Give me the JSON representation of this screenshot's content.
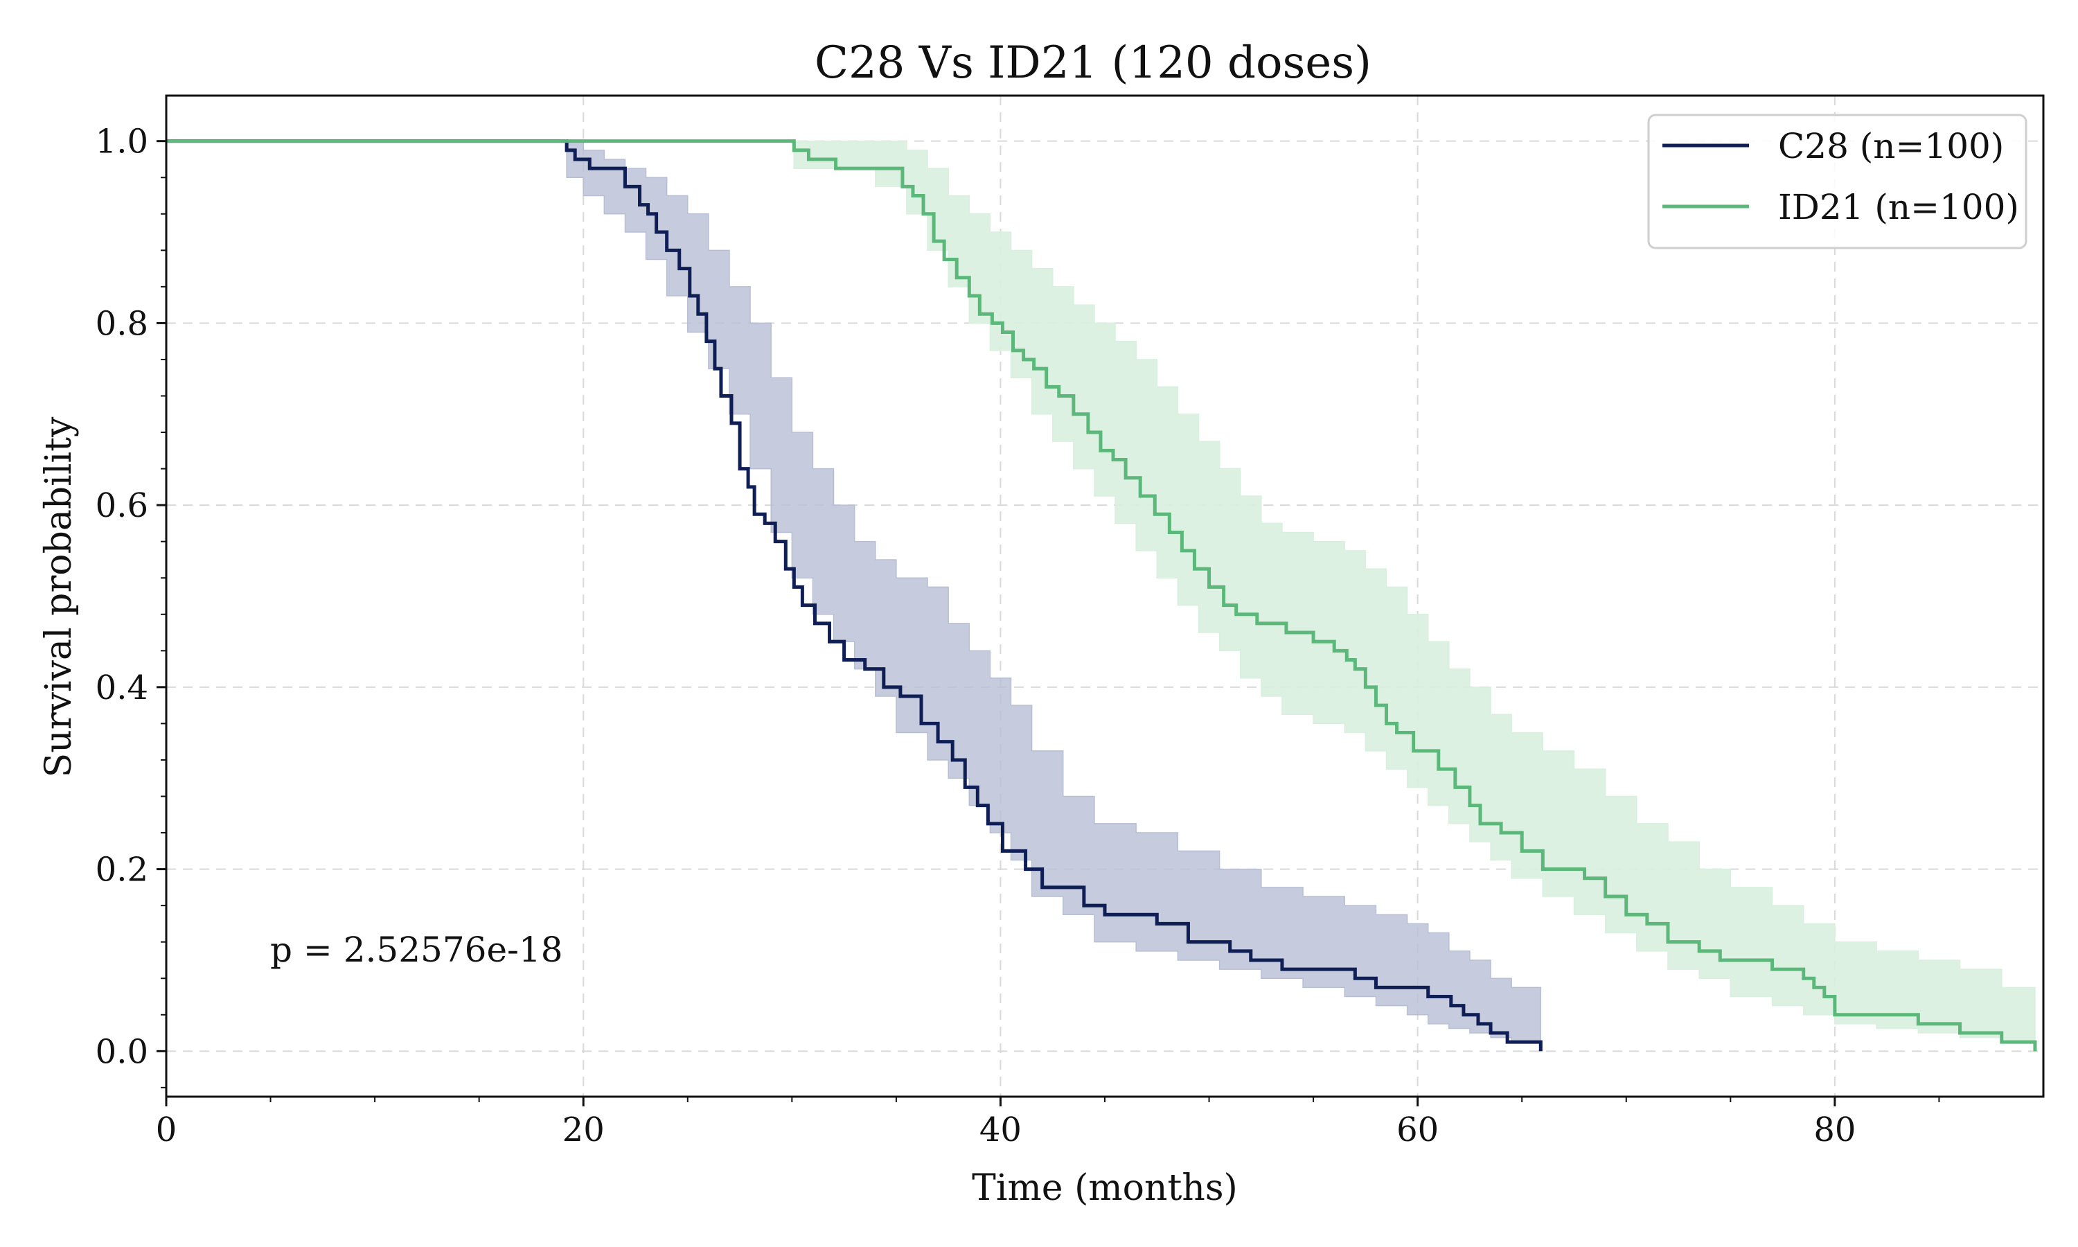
{
  "chart_data": {
    "type": "line",
    "title": "C28 Vs ID21 (120 doses)",
    "xlabel": "Time (months)",
    "ylabel": "Survival probability",
    "xlim": [
      0,
      90
    ],
    "ylim": [
      -0.05,
      1.05
    ],
    "xticks": [
      0,
      20,
      40,
      60,
      80
    ],
    "yticks": [
      0.0,
      0.2,
      0.4,
      0.6,
      0.8,
      1.0
    ],
    "ytick_labels": [
      "0.0",
      "0.2",
      "0.4",
      "0.6",
      "0.8",
      "1.0"
    ],
    "grid": true,
    "legend_position": "top-right",
    "annotation": "p = 2.52576e-18",
    "series": [
      {
        "name": "C28 (n=100)",
        "color": "#0f1f55",
        "band_color": "#b8bfd4",
        "points": [
          [
            0,
            1.0
          ],
          [
            19,
            1.0
          ],
          [
            19.2,
            0.99
          ],
          [
            19.6,
            0.98
          ],
          [
            20.3,
            0.97
          ],
          [
            22,
            0.95
          ],
          [
            22.7,
            0.93
          ],
          [
            23.1,
            0.92
          ],
          [
            23.5,
            0.9
          ],
          [
            24,
            0.88
          ],
          [
            24.6,
            0.86
          ],
          [
            25.1,
            0.83
          ],
          [
            25.5,
            0.81
          ],
          [
            25.9,
            0.78
          ],
          [
            26.3,
            0.75
          ],
          [
            26.6,
            0.72
          ],
          [
            27.1,
            0.69
          ],
          [
            27.5,
            0.64
          ],
          [
            27.9,
            0.62
          ],
          [
            28.2,
            0.59
          ],
          [
            28.7,
            0.58
          ],
          [
            29.2,
            0.56
          ],
          [
            29.7,
            0.53
          ],
          [
            30.1,
            0.51
          ],
          [
            30.5,
            0.49
          ],
          [
            31.1,
            0.47
          ],
          [
            31.8,
            0.45
          ],
          [
            32.5,
            0.43
          ],
          [
            33.5,
            0.42
          ],
          [
            34.4,
            0.4
          ],
          [
            35.2,
            0.39
          ],
          [
            36.2,
            0.36
          ],
          [
            37,
            0.34
          ],
          [
            37.7,
            0.32
          ],
          [
            38.3,
            0.29
          ],
          [
            38.9,
            0.27
          ],
          [
            39.4,
            0.25
          ],
          [
            40.1,
            0.22
          ],
          [
            41.2,
            0.2
          ],
          [
            42,
            0.18
          ],
          [
            44,
            0.16
          ],
          [
            45,
            0.15
          ],
          [
            47.5,
            0.14
          ],
          [
            49,
            0.12
          ],
          [
            51,
            0.11
          ],
          [
            52,
            0.1
          ],
          [
            53.5,
            0.09
          ],
          [
            57,
            0.08
          ],
          [
            58,
            0.07
          ],
          [
            60.5,
            0.06
          ],
          [
            61.6,
            0.05
          ],
          [
            62.2,
            0.04
          ],
          [
            62.9,
            0.03
          ],
          [
            63.5,
            0.02
          ],
          [
            64.3,
            0.01
          ],
          [
            65.8,
            0.01
          ],
          [
            65.9,
            0.0
          ]
        ],
        "upper": [
          [
            0,
            1.0
          ],
          [
            19,
            1.0
          ],
          [
            19.2,
            1.0
          ],
          [
            20,
            0.99
          ],
          [
            21,
            0.98
          ],
          [
            22,
            0.97
          ],
          [
            23,
            0.96
          ],
          [
            24,
            0.94
          ],
          [
            25,
            0.92
          ],
          [
            26,
            0.88
          ],
          [
            27,
            0.84
          ],
          [
            28,
            0.8
          ],
          [
            29,
            0.74
          ],
          [
            30,
            0.68
          ],
          [
            31,
            0.64
          ],
          [
            32,
            0.6
          ],
          [
            33,
            0.56
          ],
          [
            34,
            0.54
          ],
          [
            35,
            0.52
          ],
          [
            36.5,
            0.51
          ],
          [
            37.5,
            0.47
          ],
          [
            38.5,
            0.44
          ],
          [
            39.5,
            0.41
          ],
          [
            40.5,
            0.38
          ],
          [
            41.5,
            0.33
          ],
          [
            43,
            0.28
          ],
          [
            44.5,
            0.25
          ],
          [
            46.5,
            0.24
          ],
          [
            48.5,
            0.22
          ],
          [
            50.5,
            0.2
          ],
          [
            52.5,
            0.18
          ],
          [
            54.5,
            0.17
          ],
          [
            56.5,
            0.16
          ],
          [
            58,
            0.15
          ],
          [
            59.5,
            0.14
          ],
          [
            60.5,
            0.13
          ],
          [
            61.5,
            0.11
          ],
          [
            62.5,
            0.1
          ],
          [
            63.5,
            0.08
          ],
          [
            64.5,
            0.07
          ],
          [
            65.9,
            0.05
          ]
        ],
        "lower": [
          [
            0,
            1.0
          ],
          [
            19,
            1.0
          ],
          [
            19.2,
            0.96
          ],
          [
            20,
            0.94
          ],
          [
            21,
            0.92
          ],
          [
            22,
            0.9
          ],
          [
            23,
            0.87
          ],
          [
            24,
            0.83
          ],
          [
            25,
            0.79
          ],
          [
            26,
            0.75
          ],
          [
            27,
            0.7
          ],
          [
            28,
            0.64
          ],
          [
            29,
            0.57
          ],
          [
            30,
            0.52
          ],
          [
            31,
            0.48
          ],
          [
            32,
            0.45
          ],
          [
            33,
            0.42
          ],
          [
            34,
            0.39
          ],
          [
            35,
            0.35
          ],
          [
            36.5,
            0.32
          ],
          [
            37.5,
            0.3
          ],
          [
            38.5,
            0.27
          ],
          [
            39.5,
            0.24
          ],
          [
            40.5,
            0.21
          ],
          [
            41.5,
            0.17
          ],
          [
            43,
            0.15
          ],
          [
            44.5,
            0.12
          ],
          [
            46.5,
            0.11
          ],
          [
            48.5,
            0.1
          ],
          [
            50.5,
            0.09
          ],
          [
            52.5,
            0.08
          ],
          [
            54.5,
            0.07
          ],
          [
            56.5,
            0.06
          ],
          [
            58,
            0.05
          ],
          [
            59.5,
            0.04
          ],
          [
            60.5,
            0.03
          ],
          [
            61.5,
            0.025
          ],
          [
            62.5,
            0.02
          ],
          [
            63.5,
            0.015
          ],
          [
            64.5,
            0.01
          ],
          [
            65.9,
            0.0
          ]
        ]
      },
      {
        "name": "ID21 (n=100)",
        "color": "#5cb87a",
        "band_color": "#d9efdf",
        "points": [
          [
            0,
            1.0
          ],
          [
            30,
            1.0
          ],
          [
            30.1,
            0.99
          ],
          [
            30.8,
            0.98
          ],
          [
            32.1,
            0.97
          ],
          [
            34,
            0.97
          ],
          [
            35.3,
            0.95
          ],
          [
            35.8,
            0.94
          ],
          [
            36.3,
            0.92
          ],
          [
            36.8,
            0.89
          ],
          [
            37.3,
            0.87
          ],
          [
            37.9,
            0.85
          ],
          [
            38.5,
            0.83
          ],
          [
            39,
            0.81
          ],
          [
            39.6,
            0.8
          ],
          [
            40.1,
            0.79
          ],
          [
            40.6,
            0.77
          ],
          [
            41.1,
            0.76
          ],
          [
            41.6,
            0.75
          ],
          [
            42.2,
            0.73
          ],
          [
            42.8,
            0.72
          ],
          [
            43.5,
            0.7
          ],
          [
            44.2,
            0.68
          ],
          [
            44.8,
            0.66
          ],
          [
            45.4,
            0.65
          ],
          [
            46,
            0.63
          ],
          [
            46.7,
            0.61
          ],
          [
            47.4,
            0.59
          ],
          [
            48.1,
            0.57
          ],
          [
            48.7,
            0.55
          ],
          [
            49.3,
            0.53
          ],
          [
            50,
            0.51
          ],
          [
            50.7,
            0.49
          ],
          [
            51.3,
            0.48
          ],
          [
            52.3,
            0.47
          ],
          [
            53.7,
            0.46
          ],
          [
            55,
            0.45
          ],
          [
            56,
            0.44
          ],
          [
            56.6,
            0.43
          ],
          [
            57,
            0.42
          ],
          [
            57.5,
            0.4
          ],
          [
            58,
            0.38
          ],
          [
            58.5,
            0.36
          ],
          [
            59,
            0.35
          ],
          [
            59.8,
            0.33
          ],
          [
            61,
            0.31
          ],
          [
            61.8,
            0.29
          ],
          [
            62.5,
            0.27
          ],
          [
            63,
            0.25
          ],
          [
            64,
            0.24
          ],
          [
            65,
            0.22
          ],
          [
            66,
            0.2
          ],
          [
            68,
            0.19
          ],
          [
            69,
            0.17
          ],
          [
            70,
            0.15
          ],
          [
            71,
            0.14
          ],
          [
            72,
            0.12
          ],
          [
            73.5,
            0.11
          ],
          [
            74.5,
            0.1
          ],
          [
            77,
            0.09
          ],
          [
            78.5,
            0.08
          ],
          [
            79,
            0.07
          ],
          [
            79.5,
            0.06
          ],
          [
            80,
            0.04
          ],
          [
            82,
            0.04
          ],
          [
            84,
            0.03
          ],
          [
            86,
            0.02
          ],
          [
            88,
            0.01
          ],
          [
            89.5,
            0.01
          ],
          [
            89.6,
            0.0
          ]
        ],
        "upper": [
          [
            0,
            1.0
          ],
          [
            30,
            1.0
          ],
          [
            30.1,
            1.0
          ],
          [
            34,
            1.0
          ],
          [
            35.5,
            0.99
          ],
          [
            36.5,
            0.97
          ],
          [
            37.5,
            0.94
          ],
          [
            38.5,
            0.92
          ],
          [
            39.5,
            0.9
          ],
          [
            40.5,
            0.88
          ],
          [
            41.5,
            0.86
          ],
          [
            42.5,
            0.84
          ],
          [
            43.5,
            0.82
          ],
          [
            44.5,
            0.8
          ],
          [
            45.5,
            0.78
          ],
          [
            46.5,
            0.76
          ],
          [
            47.5,
            0.73
          ],
          [
            48.5,
            0.7
          ],
          [
            49.5,
            0.67
          ],
          [
            50.5,
            0.64
          ],
          [
            51.5,
            0.61
          ],
          [
            52.5,
            0.58
          ],
          [
            53.5,
            0.57
          ],
          [
            55,
            0.56
          ],
          [
            56.5,
            0.55
          ],
          [
            57.5,
            0.53
          ],
          [
            58.5,
            0.51
          ],
          [
            59.5,
            0.48
          ],
          [
            60.5,
            0.45
          ],
          [
            61.5,
            0.42
          ],
          [
            62.5,
            0.4
          ],
          [
            63.5,
            0.37
          ],
          [
            64.5,
            0.35
          ],
          [
            66,
            0.33
          ],
          [
            67.5,
            0.31
          ],
          [
            69,
            0.28
          ],
          [
            70.5,
            0.25
          ],
          [
            72,
            0.23
          ],
          [
            73.5,
            0.2
          ],
          [
            75,
            0.18
          ],
          [
            77,
            0.16
          ],
          [
            78.5,
            0.14
          ],
          [
            80,
            0.12
          ],
          [
            82,
            0.11
          ],
          [
            84,
            0.1
          ],
          [
            86,
            0.09
          ],
          [
            88,
            0.07
          ],
          [
            89.6,
            0.05
          ]
        ],
        "lower": [
          [
            0,
            1.0
          ],
          [
            30,
            1.0
          ],
          [
            30.1,
            0.97
          ],
          [
            34,
            0.95
          ],
          [
            35.5,
            0.92
          ],
          [
            36.5,
            0.88
          ],
          [
            37.5,
            0.84
          ],
          [
            38.5,
            0.8
          ],
          [
            39.5,
            0.77
          ],
          [
            40.5,
            0.74
          ],
          [
            41.5,
            0.7
          ],
          [
            42.5,
            0.67
          ],
          [
            43.5,
            0.64
          ],
          [
            44.5,
            0.61
          ],
          [
            45.5,
            0.58
          ],
          [
            46.5,
            0.55
          ],
          [
            47.5,
            0.52
          ],
          [
            48.5,
            0.49
          ],
          [
            49.5,
            0.46
          ],
          [
            50.5,
            0.44
          ],
          [
            51.5,
            0.41
          ],
          [
            52.5,
            0.39
          ],
          [
            53.5,
            0.37
          ],
          [
            55,
            0.36
          ],
          [
            56.5,
            0.35
          ],
          [
            57.5,
            0.33
          ],
          [
            58.5,
            0.31
          ],
          [
            59.5,
            0.29
          ],
          [
            60.5,
            0.27
          ],
          [
            61.5,
            0.25
          ],
          [
            62.5,
            0.23
          ],
          [
            63.5,
            0.21
          ],
          [
            64.5,
            0.19
          ],
          [
            66,
            0.17
          ],
          [
            67.5,
            0.15
          ],
          [
            69,
            0.13
          ],
          [
            70.5,
            0.11
          ],
          [
            72,
            0.09
          ],
          [
            73.5,
            0.08
          ],
          [
            75,
            0.06
          ],
          [
            77,
            0.05
          ],
          [
            78.5,
            0.04
          ],
          [
            80,
            0.03
          ],
          [
            82,
            0.025
          ],
          [
            84,
            0.02
          ],
          [
            86,
            0.015
          ],
          [
            88,
            0.01
          ],
          [
            89.6,
            0.0
          ]
        ]
      }
    ]
  }
}
